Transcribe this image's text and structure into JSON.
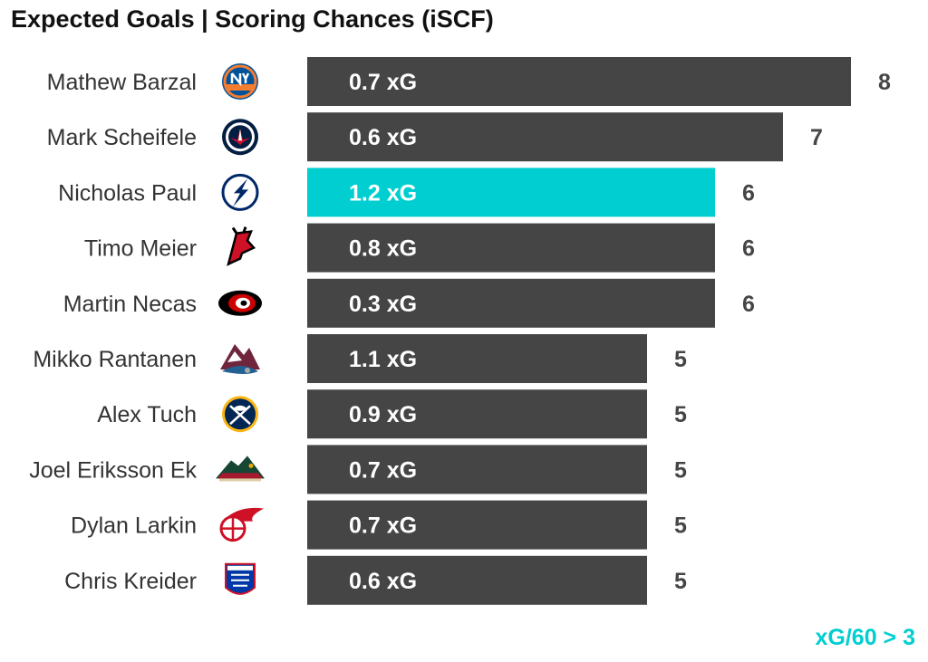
{
  "chart_data": {
    "type": "bar",
    "orientation": "horizontal",
    "title": "Expected Goals | Scoring Chances (iSCF)",
    "xlabel": "",
    "ylabel": "",
    "xlim": [
      0,
      8
    ],
    "grid": false,
    "legend_note": "xG/60 > 3",
    "colors": {
      "default": "#454545",
      "highlight": "#00ced1",
      "value_text": "#454545",
      "bar_text": "#ffffff"
    },
    "rows": [
      {
        "player": "Mathew Barzal",
        "team_logo": "islanders-logo-icon",
        "iscf": 8,
        "xg": "0.7 xG",
        "highlight": false
      },
      {
        "player": "Mark Scheifele",
        "team_logo": "jets-logo-icon",
        "iscf": 7,
        "xg": "0.6 xG",
        "highlight": false
      },
      {
        "player": "Nicholas Paul",
        "team_logo": "lightning-logo-icon",
        "iscf": 6,
        "xg": "1.2 xG",
        "highlight": true
      },
      {
        "player": "Timo Meier",
        "team_logo": "devils-logo-icon",
        "iscf": 6,
        "xg": "0.8 xG",
        "highlight": false
      },
      {
        "player": "Martin Necas",
        "team_logo": "hurricanes-logo-icon",
        "iscf": 6,
        "xg": "0.3 xG",
        "highlight": false
      },
      {
        "player": "Mikko Rantanen",
        "team_logo": "avalanche-logo-icon",
        "iscf": 5,
        "xg": "1.1 xG",
        "highlight": false
      },
      {
        "player": "Alex Tuch",
        "team_logo": "sabres-logo-icon",
        "iscf": 5,
        "xg": "0.9 xG",
        "highlight": false
      },
      {
        "player": "Joel Eriksson Ek",
        "team_logo": "wild-logo-icon",
        "iscf": 5,
        "xg": "0.7 xG",
        "highlight": false
      },
      {
        "player": "Dylan Larkin",
        "team_logo": "red-wings-logo-icon",
        "iscf": 5,
        "xg": "0.7 xG",
        "highlight": false
      },
      {
        "player": "Chris Kreider",
        "team_logo": "rangers-logo-icon",
        "iscf": 5,
        "xg": "0.6 xG",
        "highlight": false
      }
    ]
  }
}
